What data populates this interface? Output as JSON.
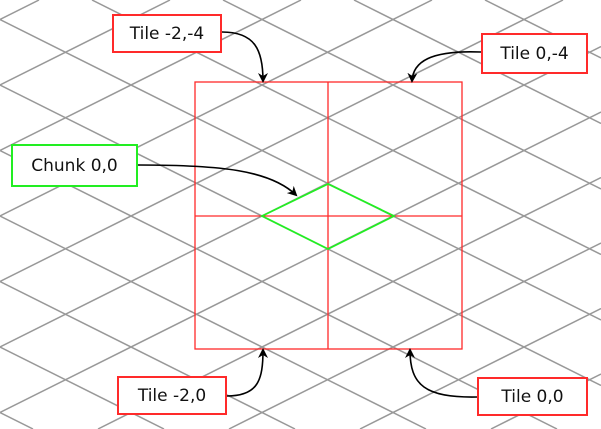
{
  "labels": {
    "tile_m2_m4": "Tile -2,-4",
    "tile_0_m4": "Tile 0,-4",
    "chunk_0_0": "Chunk 0,0",
    "tile_m2_0": "Tile -2,0",
    "tile_0_0": "Tile 0,0"
  },
  "colors": {
    "grid": "#999999",
    "tile_outline": "#ff2a2a",
    "chunk_outline": "#22ee22",
    "arrow": "#000000"
  }
}
